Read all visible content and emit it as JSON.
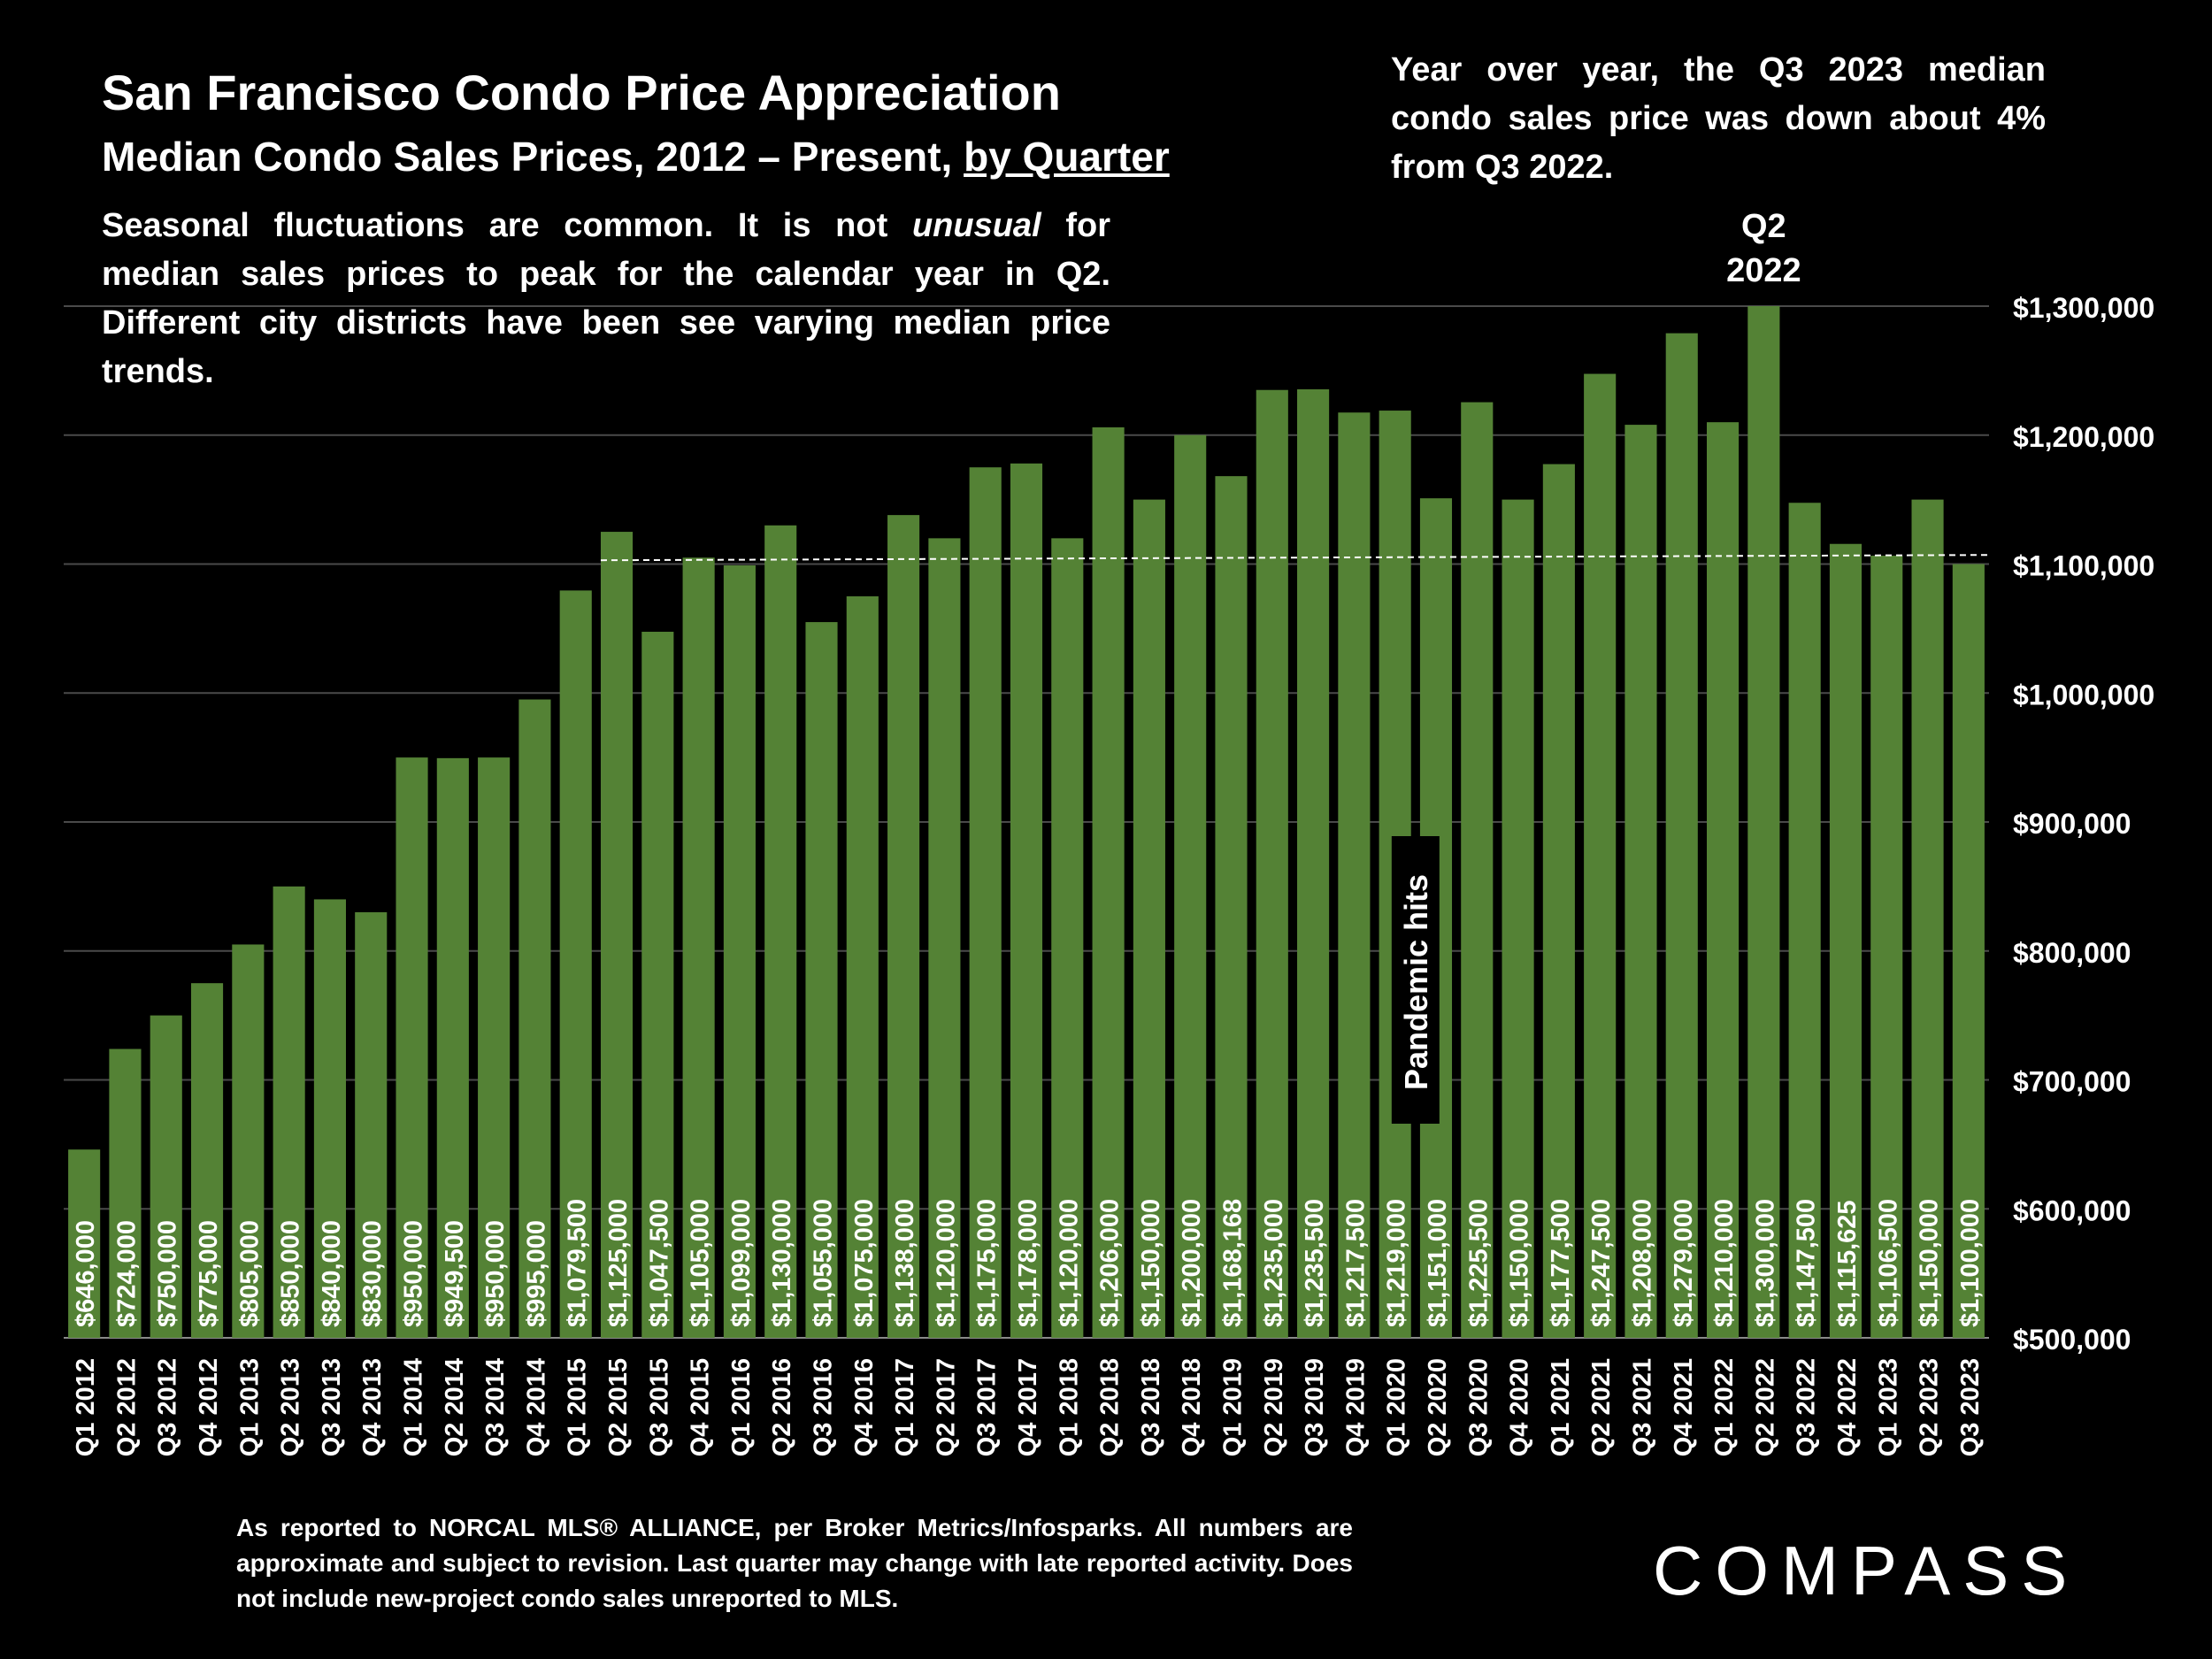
{
  "header": {
    "title": "San Francisco Condo Price Appreciation",
    "subtitle_main": "Median Condo Sales Prices, 2012 – Present, ",
    "subtitle_underlined": "by Quarter"
  },
  "notes": {
    "left_before": "Seasonal fluctuations are common. It is not ",
    "left_italic": "unusual",
    "left_after": " for median sales prices to peak for the calendar year in Q2. Different city districts have been see varying median price trends.",
    "right": "Year over year, the Q3 2023 median condo sales price was down about 4% from Q3 2022."
  },
  "footnote": "As reported to NORCAL MLS® ALLIANCE, per Broker Metrics/Infosparks. All numbers are approximate and subject to revision. Last quarter may change with late reported activity. Does not include new-project condo sales unreported to MLS.",
  "logo": "COMPASS",
  "chart_data": {
    "type": "bar",
    "title": "San Francisco Condo Price Appreciation",
    "ylim": [
      500000,
      1300000
    ],
    "y_ticks": [
      500000,
      600000,
      700000,
      800000,
      900000,
      1000000,
      1100000,
      1200000,
      1300000
    ],
    "y_tick_labels": [
      "$500,000",
      "$600,000",
      "$700,000",
      "$800,000",
      "$900,000",
      "$1,000,000",
      "$1,100,000",
      "$1,200,000",
      "$1,300,000"
    ],
    "y_axis_side": "right",
    "grid": true,
    "bar_color": "#548235",
    "categories": [
      "Q1 2012",
      "Q2 2012",
      "Q3 2012",
      "Q4 2012",
      "Q1 2013",
      "Q2 2013",
      "Q3 2013",
      "Q4 2013",
      "Q1 2014",
      "Q2 2014",
      "Q3 2014",
      "Q4 2014",
      "Q1 2015",
      "Q2 2015",
      "Q3 2015",
      "Q4 2015",
      "Q1 2016",
      "Q2 2016",
      "Q3 2016",
      "Q4 2016",
      "Q1 2017",
      "Q2 2017",
      "Q3 2017",
      "Q4 2017",
      "Q1 2018",
      "Q2 2018",
      "Q3 2018",
      "Q4 2018",
      "Q1 2019",
      "Q2 2019",
      "Q3 2019",
      "Q4 2019",
      "Q1 2020",
      "Q2 2020",
      "Q3 2020",
      "Q4 2020",
      "Q1 2021",
      "Q2 2021",
      "Q3 2021",
      "Q4 2021",
      "Q1 2022",
      "Q2 2022",
      "Q3 2022",
      "Q4 2022",
      "Q1 2023",
      "Q2 2023",
      "Q3 2023"
    ],
    "values": [
      646000,
      724000,
      750000,
      775000,
      805000,
      850000,
      840000,
      830000,
      950000,
      949500,
      950000,
      995000,
      1079500,
      1125000,
      1047500,
      1105000,
      1099000,
      1130000,
      1055000,
      1075000,
      1138000,
      1120000,
      1175000,
      1178000,
      1120000,
      1206000,
      1150000,
      1200000,
      1168168,
      1235000,
      1235500,
      1217500,
      1219000,
      1151000,
      1225500,
      1150000,
      1177500,
      1247500,
      1208000,
      1279000,
      1210000,
      1300000,
      1147500,
      1115625,
      1106500,
      1150000,
      1100000
    ],
    "value_labels": [
      "$646,000",
      "$724,000",
      "$750,000",
      "$775,000",
      "$805,000",
      "$850,000",
      "$840,000",
      "$830,000",
      "$950,000",
      "$949,500",
      "$950,000",
      "$995,000",
      "$1,079,500",
      "$1,125,000",
      "$1,047,500",
      "$1,105,000",
      "$1,099,000",
      "$1,130,000",
      "$1,055,000",
      "$1,075,000",
      "$1,138,000",
      "$1,120,000",
      "$1,175,000",
      "$1,178,000",
      "$1,120,000",
      "$1,206,000",
      "$1,150,000",
      "$1,200,000",
      "$1,168,168",
      "$1,235,000",
      "$1,235,500",
      "$1,217,500",
      "$1,219,000",
      "$1,151,000",
      "$1,225,500",
      "$1,150,000",
      "$1,177,500",
      "$1,247,500",
      "$1,208,000",
      "$1,279,000",
      "$1,210,000",
      "$1,300,000",
      "$1,147,500",
      "$1,115,625",
      "$1,106,500",
      "$1,150,000",
      "$1,100,000"
    ],
    "reference_line": {
      "value": 1105000,
      "style": "dashed",
      "from_category": "Q2 2015",
      "to_category": "Q3 2023"
    },
    "annotations": [
      {
        "text_lines": [
          "Q2",
          "2022"
        ],
        "category": "Q2 2022"
      },
      {
        "text": "Pandemic hits",
        "category": "Q1 2020",
        "orientation": "vertical"
      }
    ]
  }
}
